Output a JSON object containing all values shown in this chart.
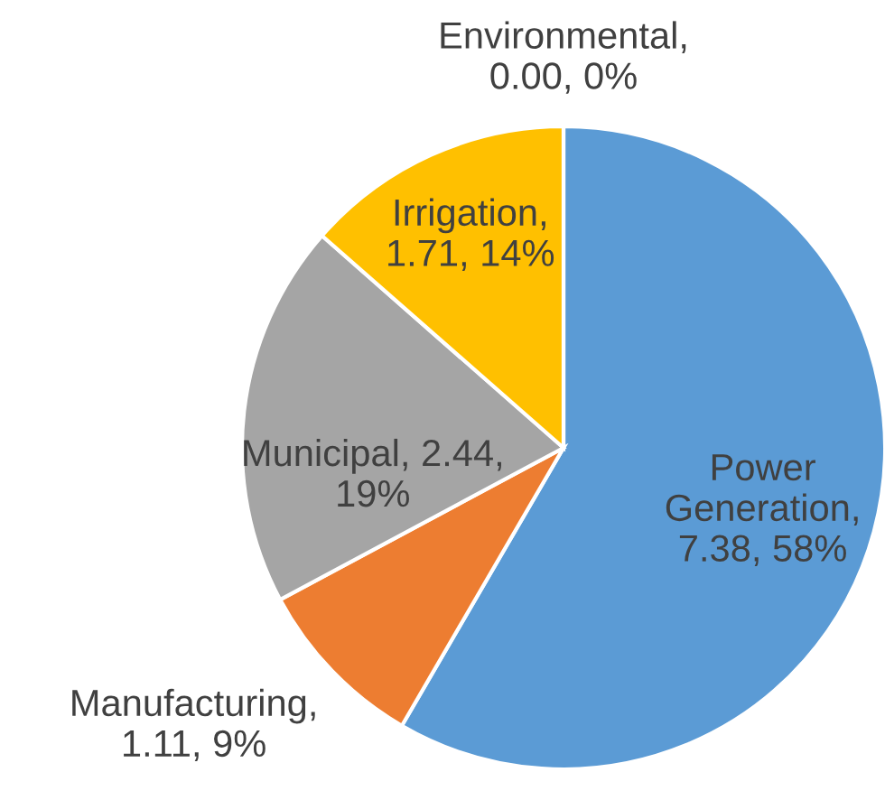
{
  "chart_data": {
    "type": "pie",
    "categories": [
      "Power Generation",
      "Manufacturing",
      "Municipal",
      "Irrigation",
      "Environmental"
    ],
    "values": [
      7.38,
      1.11,
      2.44,
      1.71,
      0.0
    ],
    "colors": [
      "#5b9bd5",
      "#ed7d31",
      "#a5a5a5",
      "#ffc000",
      "#4472c4"
    ],
    "value_labels": [
      ", 7.38, 58%",
      ", 1.11, 9%",
      ", 2.44, 19%",
      ", 1.71, 14%",
      ", 0.00, 0%"
    ]
  }
}
